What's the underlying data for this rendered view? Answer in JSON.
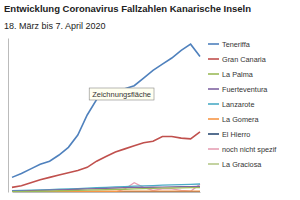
{
  "chart_data": {
    "type": "line",
    "title": "Entwicklung Coronavirus Fallzahlen Kanarische Inseln",
    "subtitle": "18. März bis 7. April 2020",
    "annotation": "Zeichnungsfläche",
    "categories": [
      null,
      null,
      null,
      null,
      null,
      null,
      null,
      null,
      null,
      null,
      null,
      null,
      null,
      null,
      null,
      null,
      null,
      null,
      null,
      null,
      null
    ],
    "ylim": [
      0,
      1000
    ],
    "tick_labels": false,
    "grid": false,
    "legend": "right",
    "series": [
      {
        "name": "Teneriffa",
        "color": "#4f81bd",
        "values": [
          95,
          120,
          150,
          180,
          200,
          240,
          290,
          370,
          500,
          600,
          640,
          660,
          670,
          690,
          740,
          790,
          830,
          870,
          920,
          960,
          880
        ]
      },
      {
        "name": "Gran Canaria",
        "color": "#c0504d",
        "values": [
          30,
          40,
          60,
          80,
          95,
          110,
          125,
          140,
          160,
          200,
          230,
          260,
          280,
          300,
          320,
          330,
          360,
          360,
          350,
          345,
          390
        ]
      },
      {
        "name": "La Palma",
        "color": "#9bbb59",
        "values": [
          2,
          3,
          4,
          5,
          6,
          8,
          9,
          10,
          12,
          14,
          15,
          17,
          18,
          20,
          22,
          24,
          25,
          26,
          27,
          28,
          29
        ]
      },
      {
        "name": "Fuerteventura",
        "color": "#8064a2",
        "values": [
          5,
          6,
          8,
          10,
          12,
          14,
          16,
          18,
          20,
          22,
          24,
          26,
          28,
          30,
          30,
          31,
          32,
          33,
          34,
          35,
          36
        ]
      },
      {
        "name": "Lanzarote",
        "color": "#4bacc6",
        "values": [
          8,
          10,
          12,
          14,
          16,
          18,
          20,
          22,
          25,
          28,
          30,
          33,
          35,
          38,
          40,
          42,
          44,
          46,
          48,
          50,
          52
        ]
      },
      {
        "name": "La Gomera",
        "color": "#f79646",
        "values": [
          1,
          1,
          2,
          2,
          3,
          3,
          4,
          4,
          4,
          5,
          5,
          5,
          6,
          6,
          6,
          6,
          6,
          6,
          6,
          6,
          6
        ]
      },
      {
        "name": "El Hierro",
        "color": "#2c4d75",
        "values": [
          0,
          0,
          0,
          0,
          0,
          1,
          1,
          1,
          1,
          1,
          2,
          2,
          2,
          2,
          3,
          3,
          3,
          3,
          3,
          3,
          3
        ]
      },
      {
        "name": "noch nicht spezif",
        "color": "#e6a0b4",
        "values": [
          0,
          0,
          0,
          0,
          0,
          0,
          0,
          0,
          0,
          0,
          0,
          0,
          20,
          60,
          30,
          10,
          20,
          20,
          10,
          5,
          50
        ]
      },
      {
        "name": "La Graciosa",
        "color": "#b6c98a",
        "values": [
          0,
          0,
          0,
          0,
          0,
          0,
          0,
          0,
          0,
          0,
          0,
          0,
          0,
          0,
          0,
          0,
          0,
          0,
          0,
          0,
          0
        ]
      }
    ]
  }
}
